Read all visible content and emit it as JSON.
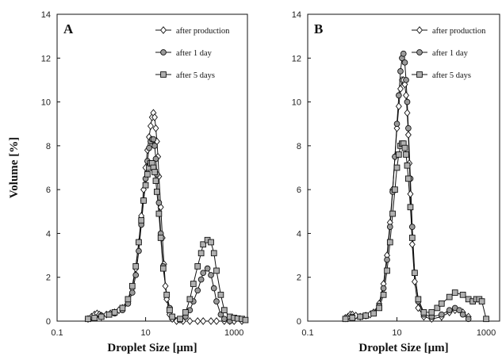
{
  "chart_data": [
    {
      "type": "line",
      "panel_label": "A",
      "xlabel": "Droplet Size [μm]",
      "ylabel": "Volume [%]",
      "xscale": "log",
      "xlim": [
        0.1,
        2000
      ],
      "ylim": [
        0,
        14
      ],
      "xticks": [
        "0.1",
        "10",
        "1000"
      ],
      "yticks": [
        "0",
        "2",
        "4",
        "6",
        "8",
        "10",
        "12",
        "14"
      ],
      "legend_position": "top-right",
      "series": [
        {
          "name": "after production",
          "marker": "diamond",
          "color": "#ffffff",
          "x": [
            0.5,
            0.6,
            0.7,
            0.8,
            0.9,
            1,
            1.3,
            1.6,
            2,
            2.5,
            3,
            4,
            5,
            6,
            7,
            8,
            9,
            10,
            11,
            12,
            13,
            14,
            15,
            16,
            17,
            18,
            19,
            20,
            22,
            24,
            26,
            28,
            30,
            35,
            40,
            50,
            70,
            100,
            150,
            200,
            300,
            400,
            600,
            800,
            1000,
            1500
          ],
          "y": [
            0.1,
            0.2,
            0.3,
            0.35,
            0.3,
            0.25,
            0.3,
            0.35,
            0.4,
            0.5,
            0.6,
            0.9,
            1.5,
            2.4,
            3.6,
            4.8,
            6.0,
            7.0,
            7.8,
            8.4,
            8.9,
            9.3,
            9.5,
            9.3,
            8.8,
            8.2,
            7.5,
            6.6,
            5.2,
            3.8,
            2.6,
            1.6,
            1.0,
            0.3,
            0.1,
            0,
            0,
            0,
            0,
            0,
            0,
            0,
            0,
            0,
            0,
            0
          ]
        },
        {
          "name": "after 1 day",
          "marker": "circle",
          "color": "#9a9a9a",
          "x": [
            0.5,
            0.7,
            1,
            1.5,
            2,
            3,
            4,
            5,
            6,
            7,
            8,
            9,
            10,
            11,
            12,
            13,
            14,
            15,
            16,
            17,
            18,
            20,
            22,
            25,
            30,
            35,
            40,
            60,
            80,
            100,
            120,
            150,
            180,
            200,
            250,
            300,
            350,
            400,
            500,
            600,
            800
          ],
          "y": [
            0.1,
            0.15,
            0.25,
            0.3,
            0.35,
            0.5,
            0.8,
            1.3,
            2.1,
            3.2,
            4.4,
            5.5,
            6.5,
            7.3,
            7.9,
            8.2,
            8.3,
            8.3,
            8.0,
            7.4,
            6.7,
            5.4,
            4.0,
            2.5,
            1.2,
            0.6,
            0.2,
            0.05,
            0.2,
            0.5,
            0.9,
            1.4,
            1.9,
            2.2,
            2.4,
            2.1,
            1.5,
            0.9,
            0.3,
            0.1,
            0
          ]
        },
        {
          "name": "after 5 days",
          "marker": "square",
          "color": "#b0b0b0",
          "x": [
            0.5,
            0.7,
            1,
            1.5,
            2,
            3,
            4,
            5,
            6,
            7,
            8,
            9,
            10,
            11,
            12,
            13,
            14,
            15,
            16,
            17,
            18,
            20,
            22,
            25,
            30,
            35,
            40,
            60,
            80,
            100,
            120,
            150,
            180,
            200,
            250,
            300,
            350,
            400,
            500,
            600,
            800,
            1000,
            1200,
            1500,
            1800
          ],
          "y": [
            0.1,
            0.15,
            0.2,
            0.3,
            0.4,
            0.6,
            1.0,
            1.6,
            2.5,
            3.6,
            4.6,
            5.5,
            6.2,
            6.7,
            7.0,
            7.2,
            7.2,
            7.0,
            6.8,
            6.4,
            5.9,
            4.9,
            3.8,
            2.4,
            1.2,
            0.5,
            0.2,
            0.1,
            0.4,
            1.0,
            1.7,
            2.5,
            3.1,
            3.5,
            3.7,
            3.6,
            3.1,
            2.3,
            1.2,
            0.5,
            0.2,
            0.15,
            0.12,
            0.1,
            0.05
          ]
        }
      ]
    },
    {
      "type": "line",
      "panel_label": "B",
      "xlabel": "Droplet Size [μm]",
      "ylabel": "",
      "xscale": "log",
      "xlim": [
        0.1,
        2000
      ],
      "ylim": [
        0,
        14
      ],
      "xticks": [
        "0.1",
        "10",
        "1000"
      ],
      "yticks": [
        "0",
        "2",
        "4",
        "6",
        "8",
        "10",
        "12",
        "14"
      ],
      "legend_position": "top-right",
      "series": [
        {
          "name": "after production",
          "marker": "diamond",
          "color": "#ffffff",
          "x": [
            0.7,
            0.8,
            0.9,
            1,
            1.2,
            1.5,
            2,
            2.5,
            3,
            4,
            5,
            6,
            7,
            8,
            9,
            10,
            11,
            12,
            13,
            14,
            15,
            16,
            17,
            18,
            19,
            20,
            22,
            25,
            30,
            40,
            60,
            100,
            150,
            200,
            300,
            400
          ],
          "y": [
            0.15,
            0.2,
            0.3,
            0.3,
            0.25,
            0.2,
            0.25,
            0.3,
            0.4,
            0.8,
            1.7,
            3.0,
            4.5,
            6.0,
            7.5,
            8.8,
            9.8,
            10.6,
            11.0,
            11.0,
            10.8,
            10.3,
            9.5,
            8.5,
            7.2,
            5.8,
            3.5,
            1.8,
            0.6,
            0.2,
            0.1,
            0.2,
            0.4,
            0.5,
            0.4,
            0.2
          ]
        },
        {
          "name": "after 1 day",
          "marker": "circle",
          "color": "#9a9a9a",
          "x": [
            0.7,
            1,
            1.5,
            2,
            3,
            4,
            5,
            6,
            7,
            8,
            9,
            10,
            11,
            12,
            13,
            14,
            15,
            16,
            17,
            18,
            20,
            22,
            25,
            30,
            40,
            60,
            100,
            150,
            200,
            250,
            300,
            400
          ],
          "y": [
            0.1,
            0.2,
            0.2,
            0.25,
            0.35,
            0.7,
            1.5,
            2.8,
            4.3,
            5.9,
            7.5,
            9.0,
            10.3,
            11.4,
            12.0,
            12.2,
            11.8,
            11.0,
            10.0,
            8.8,
            6.5,
            4.3,
            2.2,
            0.9,
            0.3,
            0.2,
            0.3,
            0.5,
            0.6,
            0.5,
            0.3,
            0.1
          ]
        },
        {
          "name": "after 5 days",
          "marker": "square",
          "color": "#b0b0b0",
          "x": [
            0.7,
            1,
            1.5,
            2,
            3,
            4,
            5,
            6,
            7,
            8,
            9,
            10,
            11,
            12,
            13,
            14,
            15,
            16,
            17,
            18,
            20,
            22,
            25,
            30,
            40,
            60,
            80,
            100,
            150,
            200,
            300,
            400,
            500,
            600,
            700,
            800,
            1000
          ],
          "y": [
            0.1,
            0.15,
            0.2,
            0.25,
            0.35,
            0.6,
            1.2,
            2.3,
            3.6,
            4.9,
            6.0,
            7.0,
            7.6,
            8.0,
            8.1,
            8.1,
            7.9,
            7.6,
            7.1,
            6.5,
            5.2,
            3.8,
            2.2,
            1.0,
            0.4,
            0.4,
            0.6,
            0.8,
            1.1,
            1.3,
            1.2,
            1.0,
            0.9,
            1.0,
            1.0,
            0.9,
            0.1
          ]
        }
      ]
    }
  ]
}
